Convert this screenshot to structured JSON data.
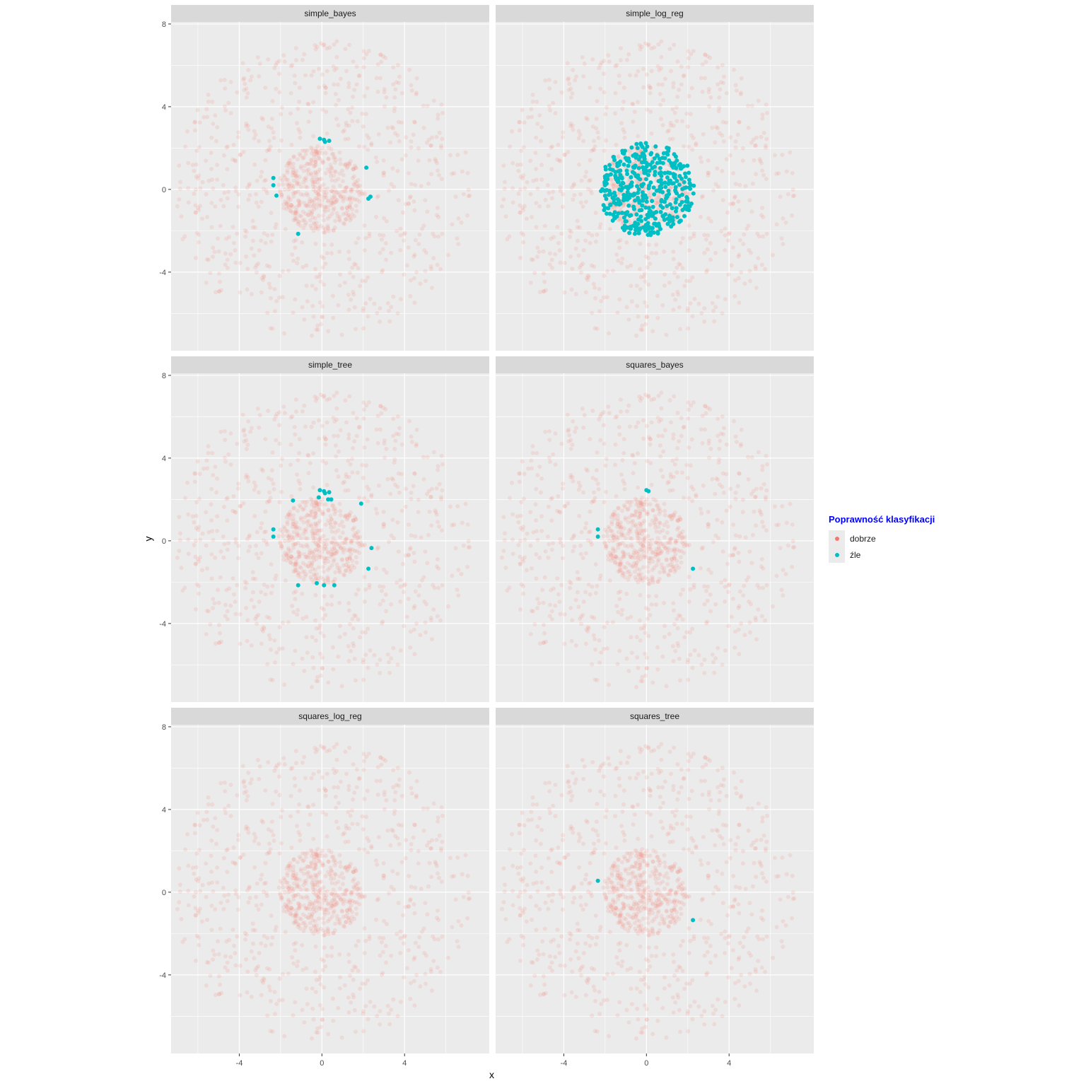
{
  "chart_data": {
    "type": "scatter",
    "xlabel": "x",
    "ylabel": "y",
    "xlim": [
      -7.3,
      8.1
    ],
    "ylim": [
      -7.8,
      8.1
    ],
    "x_ticks": [
      -4,
      0,
      4
    ],
    "y_ticks": [
      -4,
      0,
      4,
      8
    ],
    "grid": true,
    "legend_position": "right",
    "legend": {
      "title": "Poprawność klasyfikacji",
      "title_color": "#0000ff",
      "entries": [
        {
          "label": "dobrze",
          "color": "#F8766D"
        },
        {
          "label": "źle",
          "color": "#00BFC4"
        }
      ]
    },
    "background_points": {
      "description_note": "",
      "inner_disk": {
        "count": 420,
        "radius_max": 2.1,
        "center": [
          0,
          0
        ]
      },
      "outer_ring": {
        "count": 620,
        "radius_min": 2.6,
        "radius_max": 7.2,
        "center": [
          0,
          0
        ]
      },
      "color": "#F8766D",
      "alpha": 0.14
    },
    "panels": [
      {
        "title": "simple_bayes",
        "misclassified": [
          [
            -0.1,
            2.45
          ],
          [
            0.1,
            2.4
          ],
          [
            0.35,
            2.35
          ],
          [
            0.15,
            2.3
          ],
          [
            -2.35,
            0.55
          ],
          [
            -2.35,
            0.2
          ],
          [
            -2.2,
            -0.3
          ],
          [
            2.15,
            1.05
          ],
          [
            2.35,
            -0.35
          ],
          [
            2.25,
            -0.45
          ],
          [
            -1.15,
            -2.15
          ]
        ]
      },
      {
        "title": "simple_log_reg",
        "misclassified_disk": {
          "count": 420,
          "radius_max": 2.3,
          "center": [
            0,
            0
          ]
        },
        "misclassified": []
      },
      {
        "title": "simple_tree",
        "misclassified": [
          [
            -0.1,
            2.45
          ],
          [
            0.1,
            2.4
          ],
          [
            0.35,
            2.35
          ],
          [
            0.15,
            2.3
          ],
          [
            -0.15,
            2.1
          ],
          [
            0.3,
            2.0
          ],
          [
            0.45,
            2.0
          ],
          [
            -1.4,
            1.95
          ],
          [
            1.9,
            1.8
          ],
          [
            -2.35,
            0.55
          ],
          [
            -2.35,
            0.2
          ],
          [
            2.4,
            -0.35
          ],
          [
            2.25,
            -1.35
          ],
          [
            -1.15,
            -2.15
          ],
          [
            -0.25,
            -2.05
          ],
          [
            0.1,
            -2.15
          ],
          [
            0.6,
            -2.15
          ]
        ]
      },
      {
        "title": "squares_bayes",
        "misclassified": [
          [
            0.0,
            2.45
          ],
          [
            0.1,
            2.4
          ],
          [
            -2.35,
            0.55
          ],
          [
            -2.35,
            0.2
          ],
          [
            2.25,
            -1.35
          ]
        ]
      },
      {
        "title": "squares_log_reg",
        "misclassified": []
      },
      {
        "title": "squares_tree",
        "misclassified": [
          [
            -2.35,
            0.55
          ],
          [
            2.25,
            -1.35
          ]
        ]
      }
    ]
  }
}
